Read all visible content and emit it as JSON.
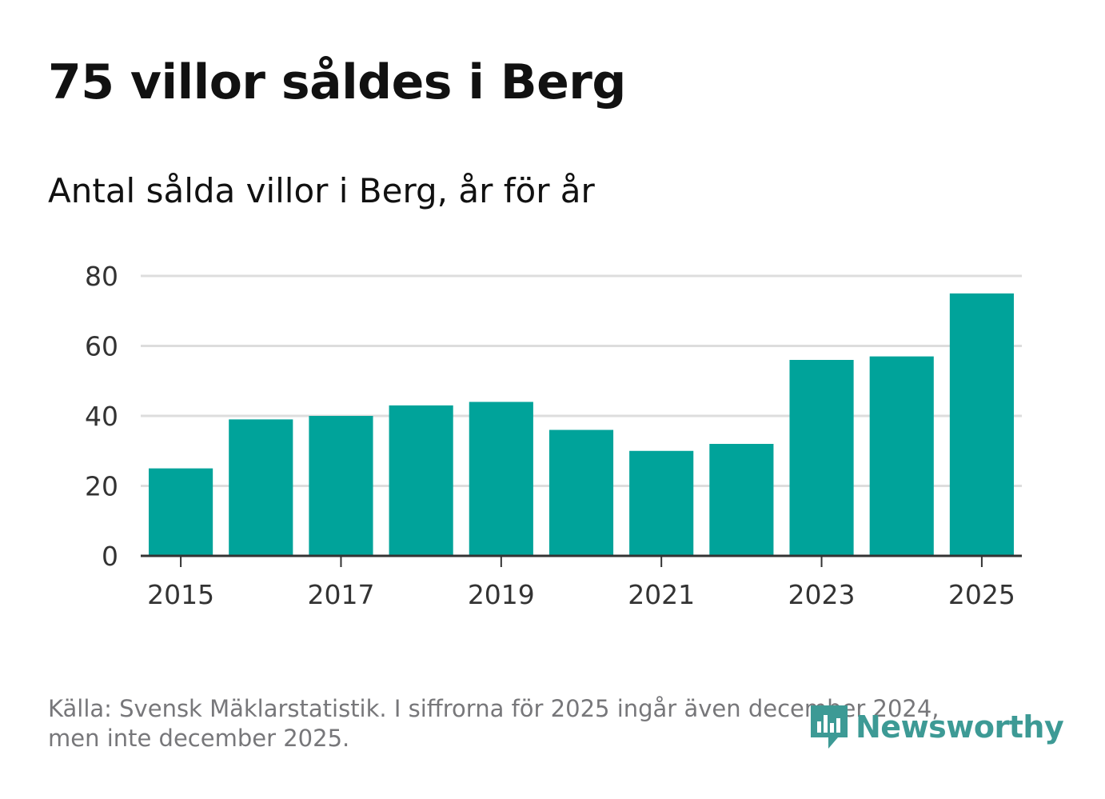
{
  "title": "75 villor såldes i Berg",
  "subtitle": "Antal sålda villor i Berg, år för år",
  "source_line1": "Källa: Svensk Mäklarstatistik. I siffrorna för 2025 ingår även december 2024,",
  "source_line2": "men inte december 2025.",
  "logo_text": "Newsworthy",
  "colors": {
    "bar": "#00a39a",
    "grid": "#dddddd",
    "axis": "#333333",
    "logo": "#3d9a95"
  },
  "chart_data": {
    "type": "bar",
    "title": "75 villor såldes i Berg",
    "subtitle": "Antal sålda villor i Berg, år för år",
    "xlabel": "",
    "ylabel": "",
    "categories": [
      "2015",
      "2016",
      "2017",
      "2018",
      "2019",
      "2020",
      "2021",
      "2022",
      "2023",
      "2024",
      "2025"
    ],
    "values": [
      25,
      39,
      40,
      43,
      44,
      36,
      30,
      32,
      56,
      57,
      75
    ],
    "ylim": [
      0,
      80
    ],
    "yticks": [
      "0",
      "20",
      "40",
      "60",
      "80"
    ],
    "xticks": [
      "2015",
      "2017",
      "2019",
      "2021",
      "2023",
      "2025"
    ],
    "grid": true
  }
}
